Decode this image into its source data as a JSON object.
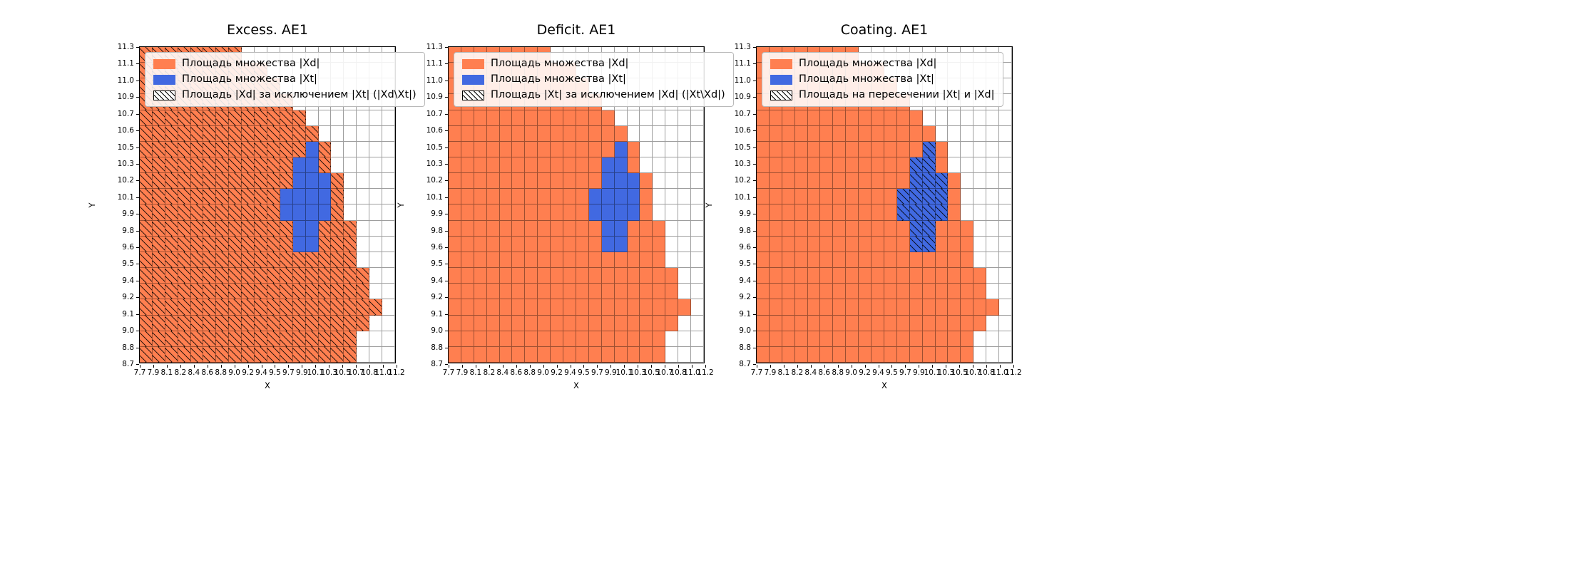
{
  "figure": {
    "background": "#ffffff",
    "colors": {
      "xd": "#FF7F50",
      "xt": "#4169E1",
      "grid_line": "#616161",
      "spine": "#000000"
    }
  },
  "grid": {
    "x_ticks": [
      "7.7",
      "7.9",
      "8.1",
      "8.2",
      "8.4",
      "8.6",
      "8.8",
      "9.0",
      "9.2",
      "9.4",
      "9.5",
      "9.7",
      "9.9",
      "10.1",
      "10.3",
      "10.5",
      "10.7",
      "10.8",
      "11.0",
      "11.2"
    ],
    "y_ticks": [
      "11.3",
      "11.1",
      "11.0",
      "10.9",
      "10.7",
      "10.6",
      "10.5",
      "10.3",
      "10.2",
      "10.1",
      "9.9",
      "9.8",
      "9.6",
      "9.5",
      "9.4",
      "9.2",
      "9.1",
      "9.0",
      "8.8",
      "8.7"
    ],
    "cell_key": {
      "O": "set-Xd",
      "B": "set-Xt",
      ".": "empty"
    },
    "rows": [
      "OOOOOOOO............",
      "OOOOOOOOOO..........",
      "OOOOOOOOOOO.........",
      "OOOOOOOOOOOO........",
      "OOOOOOOOOOOOO.......",
      "OOOOOOOOOOOOOO......",
      "OOOOOOOOOOOOOBO.....",
      "OOOOOOOOOOOOBBO.....",
      "OOOOOOOOOOOOBBBO....",
      "OOOOOOOOOOOBBBBO....",
      "OOOOOOOOOOOBBBBO....",
      "OOOOOOOOOOOOBBOOO...",
      "OOOOOOOOOOOOBBOOO...",
      "OOOOOOOOOOOOOOOOO...",
      "OOOOOOOOOOOOOOOOOO..",
      "OOOOOOOOOOOOOOOOOO..",
      "OOOOOOOOOOOOOOOOOOO.",
      "OOOOOOOOOOOOOOOOOO..",
      "OOOOOOOOOOOOOOOOO...",
      "OOOOOOOOOOOOOOOOO..."
    ]
  },
  "chart_data": [
    {
      "type": "heatmap",
      "title": "Excess. AE1",
      "xlabel": "X",
      "ylabel": "Y",
      "hatch_on": "xd",
      "legend": [
        {
          "label": "Площадь множества |Xd|",
          "swatch": "xd"
        },
        {
          "label": "Площадь множества  |Xt|",
          "swatch": "xt"
        },
        {
          "label": "Площадь |Xd| за исключением |Xt| (|Xd\\Xt|)",
          "swatch": "hatch"
        }
      ]
    },
    {
      "type": "heatmap",
      "title": "Deficit. AE1",
      "xlabel": "X",
      "ylabel": "Y",
      "hatch_on": "none",
      "legend": [
        {
          "label": "Площадь множества |Xd|",
          "swatch": "xd"
        },
        {
          "label": "Площадь множества  |Xt|",
          "swatch": "xt"
        },
        {
          "label": "Площадь |Xt| за исключением |Xd| (|Xt\\Xd|)",
          "swatch": "hatch"
        }
      ]
    },
    {
      "type": "heatmap",
      "title": "Coating. AE1",
      "xlabel": "X",
      "ylabel": "Y",
      "hatch_on": "xt",
      "legend": [
        {
          "label": "Площадь множества |Xd|",
          "swatch": "xd"
        },
        {
          "label": "Площадь множества  |Xt|",
          "swatch": "xt"
        },
        {
          "label": "Площадь на пересечении |Xt| и |Xd|",
          "swatch": "hatch"
        }
      ]
    }
  ]
}
